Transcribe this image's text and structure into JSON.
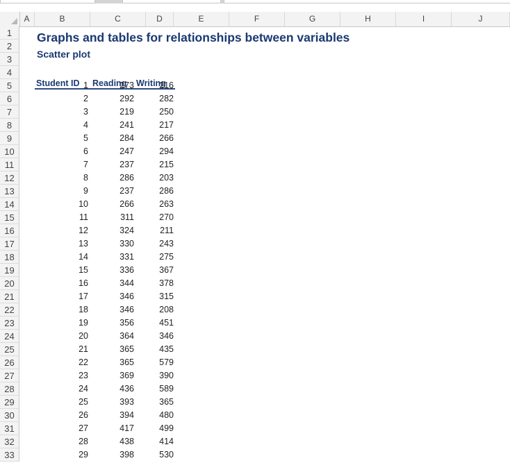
{
  "sheet": {
    "columns": [
      "A",
      "B",
      "C",
      "D",
      "E",
      "F",
      "G",
      "H",
      "I",
      "J"
    ],
    "title": "Graphs and tables for relationships between variables",
    "subtitle": "Scatter plot",
    "table": {
      "headers": [
        "Student ID",
        "Reading",
        "Writing"
      ],
      "rows": [
        [
          "1",
          "273",
          "216"
        ],
        [
          "2",
          "292",
          "282"
        ],
        [
          "3",
          "219",
          "250"
        ],
        [
          "4",
          "241",
          "217"
        ],
        [
          "5",
          "284",
          "266"
        ],
        [
          "6",
          "247",
          "294"
        ],
        [
          "7",
          "237",
          "215"
        ],
        [
          "8",
          "286",
          "203"
        ],
        [
          "9",
          "237",
          "286"
        ],
        [
          "10",
          "266",
          "263"
        ],
        [
          "11",
          "311",
          "270"
        ],
        [
          "12",
          "324",
          "211"
        ],
        [
          "13",
          "330",
          "243"
        ],
        [
          "14",
          "331",
          "275"
        ],
        [
          "15",
          "336",
          "367"
        ],
        [
          "16",
          "344",
          "378"
        ],
        [
          "17",
          "346",
          "315"
        ],
        [
          "18",
          "346",
          "208"
        ],
        [
          "19",
          "356",
          "451"
        ],
        [
          "20",
          "364",
          "346"
        ],
        [
          "21",
          "365",
          "435"
        ],
        [
          "22",
          "365",
          "579"
        ],
        [
          "23",
          "369",
          "390"
        ],
        [
          "24",
          "436",
          "589"
        ],
        [
          "25",
          "393",
          "365"
        ],
        [
          "26",
          "394",
          "480"
        ],
        [
          "27",
          "417",
          "499"
        ],
        [
          "28",
          "438",
          "414"
        ],
        [
          "29",
          "398",
          "530"
        ]
      ]
    }
  }
}
